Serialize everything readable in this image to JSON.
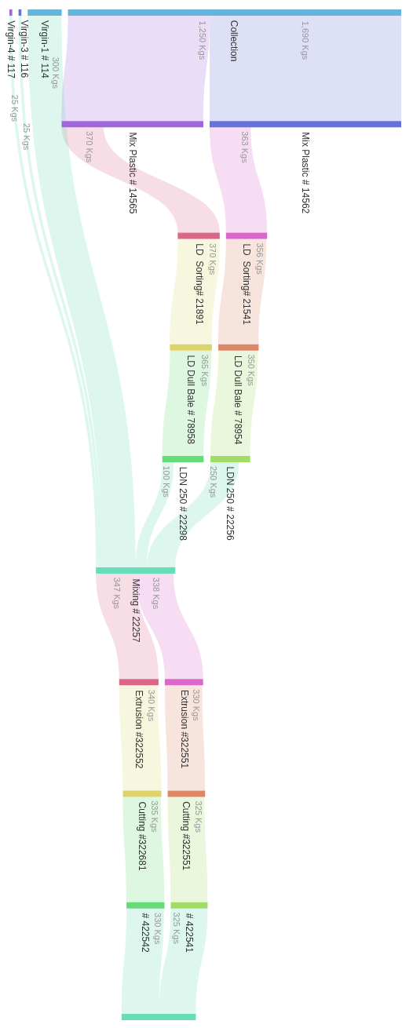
{
  "chart_data": {
    "type": "other",
    "categories": [
      "Mix Plastic # 14565",
      "Mix Plastic # 14562",
      "LD  Sorting# 21891",
      "LD  Sorting# 21541",
      "LD Dull Bale # 78958",
      "LD Dull Bale # 78954",
      "LDN 250 # 22298",
      "LDN 250 # 22256",
      "Mixing # 22257",
      "Extrusion #322552",
      "Extrusion #322551",
      "Cutting #322681",
      "Cutting #322551",
      "# 422542",
      "# 422541",
      null,
      "Virgin-4 # 117",
      "Virgin-3 # 116",
      "Virgin-1 # 114",
      "Collection"
    ],
    "colors": [
      "#a066dc",
      "#6672dc",
      "#dc6688",
      "#dc66cc",
      "#dcd46a",
      "#dc8866",
      "#66dc77",
      "#a0dc66",
      "#66dcb8",
      "#dc6688",
      "#dc66cc",
      "#dcd46a",
      "#dc8866",
      "#66dc77",
      "#a0dc66",
      "#66dcb8",
      "#a066dc",
      "#6672dc",
      "#64b4dc",
      "#64b4dc"
    ],
    "series": [
      {
        "color": "#a066dc",
        "values": [
          null,
          null,
          null,
          null,
          null,
          null,
          null,
          null,
          null,
          null,
          null,
          null,
          null,
          null,
          null,
          null,
          null,
          null,
          null,
          1250
        ],
        "value_labels": [
          null,
          null,
          null,
          null,
          null,
          null,
          null,
          null,
          null,
          null,
          null,
          null,
          null,
          null,
          null,
          null,
          null,
          null,
          null,
          "1,250 Kgs"
        ]
      },
      {
        "color": "#6672dc",
        "values": [
          null,
          null,
          null,
          null,
          null,
          null,
          null,
          null,
          null,
          null,
          null,
          null,
          null,
          null,
          null,
          null,
          null,
          null,
          null,
          1690
        ],
        "value_labels": [
          null,
          null,
          null,
          null,
          null,
          null,
          null,
          null,
          null,
          null,
          null,
          null,
          null,
          null,
          null,
          null,
          null,
          null,
          null,
          "1,690 Kgs"
        ]
      },
      {
        "color": "#dc6688",
        "values": [
          370,
          null,
          null,
          null,
          null,
          null,
          null,
          null,
          null,
          null,
          null,
          null,
          null,
          null,
          null,
          null,
          null,
          null,
          null,
          null
        ],
        "value_labels": [
          "370 Kgs",
          null,
          null,
          null,
          null,
          null,
          null,
          null,
          null,
          null,
          null,
          null,
          null,
          null,
          null,
          null,
          null,
          null,
          null,
          null
        ]
      },
      {
        "color": "#dc66cc",
        "values": [
          null,
          363,
          null,
          null,
          null,
          null,
          null,
          null,
          null,
          null,
          null,
          null,
          null,
          null,
          null,
          null,
          null,
          null,
          null,
          null
        ],
        "value_labels": [
          null,
          "363 Kgs",
          null,
          null,
          null,
          null,
          null,
          null,
          null,
          null,
          null,
          null,
          null,
          null,
          null,
          null,
          null,
          null,
          null,
          null
        ]
      },
      {
        "color": "#dcd46a",
        "values": [
          null,
          null,
          370,
          null,
          null,
          null,
          null,
          null,
          null,
          null,
          null,
          null,
          null,
          null,
          null,
          null,
          null,
          null,
          null,
          null
        ],
        "value_labels": [
          null,
          null,
          "370 Kgs",
          null,
          null,
          null,
          null,
          null,
          null,
          null,
          null,
          null,
          null,
          null,
          null,
          null,
          null,
          null,
          null,
          null
        ]
      },
      {
        "color": "#dc8866",
        "values": [
          null,
          null,
          null,
          356,
          null,
          null,
          null,
          null,
          null,
          null,
          null,
          null,
          null,
          null,
          null,
          null,
          null,
          null,
          null,
          null
        ],
        "value_labels": [
          null,
          null,
          null,
          "356 Kgs",
          null,
          null,
          null,
          null,
          null,
          null,
          null,
          null,
          null,
          null,
          null,
          null,
          null,
          null,
          null,
          null
        ]
      },
      {
        "color": "#66dc77",
        "values": [
          null,
          null,
          null,
          null,
          365,
          null,
          null,
          null,
          null,
          null,
          null,
          null,
          null,
          null,
          null,
          null,
          null,
          null,
          null,
          null
        ],
        "value_labels": [
          null,
          null,
          null,
          null,
          "365 Kgs",
          null,
          null,
          null,
          null,
          null,
          null,
          null,
          null,
          null,
          null,
          null,
          null,
          null,
          null,
          null
        ]
      },
      {
        "color": "#a0dc66",
        "values": [
          null,
          null,
          null,
          null,
          null,
          350,
          null,
          null,
          null,
          null,
          null,
          null,
          null,
          null,
          null,
          null,
          null,
          null,
          null,
          null
        ],
        "value_labels": [
          null,
          null,
          null,
          null,
          null,
          "350 Kgs",
          null,
          null,
          null,
          null,
          null,
          null,
          null,
          null,
          null,
          null,
          null,
          null,
          null,
          null
        ]
      },
      {
        "color": "#66dcb8",
        "values": [
          null,
          null,
          null,
          null,
          null,
          null,
          100,
          250,
          null,
          null,
          null,
          null,
          null,
          null,
          null,
          null,
          25,
          25,
          300,
          null
        ],
        "value_labels": [
          null,
          null,
          null,
          null,
          null,
          null,
          "100 Kgs",
          "250 Kgs",
          null,
          null,
          null,
          null,
          null,
          null,
          null,
          null,
          "25 Kgs",
          "25 Kgs",
          "300 Kgs",
          null
        ]
      },
      {
        "color": "#dc6688",
        "values": [
          null,
          null,
          null,
          null,
          null,
          null,
          null,
          null,
          347,
          null,
          null,
          null,
          null,
          null,
          null,
          null,
          null,
          null,
          null,
          null
        ],
        "value_labels": [
          null,
          null,
          null,
          null,
          null,
          null,
          null,
          null,
          "347 Kgs",
          null,
          null,
          null,
          null,
          null,
          null,
          null,
          null,
          null,
          null,
          null
        ]
      },
      {
        "color": "#dc66cc",
        "values": [
          null,
          null,
          null,
          null,
          null,
          null,
          null,
          null,
          338,
          null,
          null,
          null,
          null,
          null,
          null,
          null,
          null,
          null,
          null,
          null
        ],
        "value_labels": [
          null,
          null,
          null,
          null,
          null,
          null,
          null,
          null,
          "338 Kgs",
          null,
          null,
          null,
          null,
          null,
          null,
          null,
          null,
          null,
          null,
          null
        ]
      },
      {
        "color": "#dcd46a",
        "values": [
          null,
          null,
          null,
          null,
          null,
          null,
          null,
          null,
          null,
          340,
          null,
          null,
          null,
          null,
          null,
          null,
          null,
          null,
          null,
          null
        ],
        "value_labels": [
          null,
          null,
          null,
          null,
          null,
          null,
          null,
          null,
          null,
          "340 Kgs",
          null,
          null,
          null,
          null,
          null,
          null,
          null,
          null,
          null,
          null
        ]
      },
      {
        "color": "#dc8866",
        "values": [
          null,
          null,
          null,
          null,
          null,
          null,
          null,
          null,
          null,
          null,
          330,
          null,
          null,
          null,
          null,
          null,
          null,
          null,
          null,
          null
        ],
        "value_labels": [
          null,
          null,
          null,
          null,
          null,
          null,
          null,
          null,
          null,
          null,
          "330 Kgs",
          null,
          null,
          null,
          null,
          null,
          null,
          null,
          null,
          null
        ]
      },
      {
        "color": "#66dc77",
        "values": [
          null,
          null,
          null,
          null,
          null,
          null,
          null,
          null,
          null,
          null,
          null,
          335,
          null,
          null,
          null,
          null,
          null,
          null,
          null,
          null
        ],
        "value_labels": [
          null,
          null,
          null,
          null,
          null,
          null,
          null,
          null,
          null,
          null,
          null,
          "335 Kgs",
          null,
          null,
          null,
          null,
          null,
          null,
          null,
          null
        ]
      },
      {
        "color": "#a0dc66",
        "values": [
          null,
          null,
          null,
          null,
          null,
          null,
          null,
          null,
          null,
          null,
          null,
          null,
          325,
          null,
          null,
          null,
          null,
          null,
          null,
          null
        ],
        "value_labels": [
          null,
          null,
          null,
          null,
          null,
          null,
          null,
          null,
          null,
          null,
          null,
          null,
          "325 Kgs",
          null,
          null,
          null,
          null,
          null,
          null,
          null
        ]
      },
      {
        "color": "#66dcb8",
        "values": [
          null,
          null,
          null,
          null,
          null,
          null,
          null,
          null,
          null,
          null,
          null,
          null,
          null,
          330,
          325,
          null,
          null,
          null,
          null,
          null
        ],
        "value_labels": [
          null,
          null,
          null,
          null,
          null,
          null,
          null,
          null,
          null,
          null,
          null,
          null,
          null,
          "330 Kgs",
          "325 Kgs",
          null,
          null,
          null,
          null,
          null
        ]
      }
    ]
  }
}
